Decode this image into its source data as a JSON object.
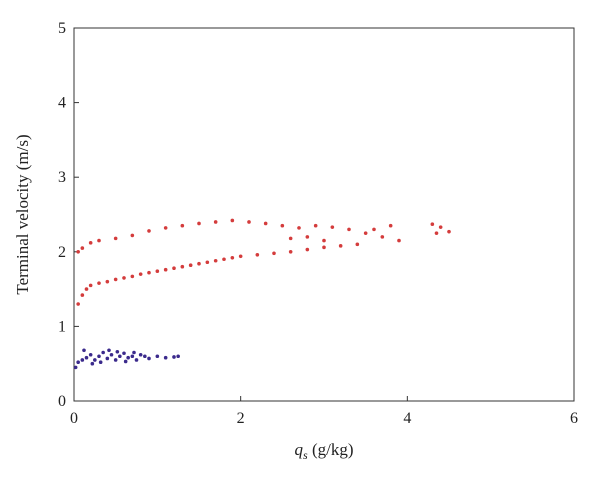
{
  "chart_data": {
    "type": "scatter",
    "title": "",
    "xlabel": "q",
    "xlabel_sub": "s",
    "xlabel_units": " (g/kg)",
    "ylabel": "Terminal velocity (m/s)",
    "xlim": [
      0,
      6
    ],
    "ylim": [
      0,
      5
    ],
    "xticks": [
      0,
      2,
      4,
      6
    ],
    "yticks": [
      0,
      1,
      2,
      3,
      4,
      5
    ],
    "grid": false,
    "legend": "none",
    "series": [
      {
        "color": "#d43c3c",
        "points": [
          [
            0.05,
            1.3
          ],
          [
            0.1,
            1.42
          ],
          [
            0.15,
            1.5
          ],
          [
            0.2,
            1.55
          ],
          [
            0.3,
            1.58
          ],
          [
            0.4,
            1.6
          ],
          [
            0.5,
            1.63
          ],
          [
            0.6,
            1.65
          ],
          [
            0.7,
            1.67
          ],
          [
            0.8,
            1.7
          ],
          [
            0.9,
            1.72
          ],
          [
            1.0,
            1.74
          ],
          [
            1.1,
            1.76
          ],
          [
            1.2,
            1.78
          ],
          [
            1.3,
            1.8
          ],
          [
            1.4,
            1.82
          ],
          [
            1.5,
            1.84
          ],
          [
            1.6,
            1.86
          ],
          [
            1.7,
            1.88
          ],
          [
            1.8,
            1.9
          ],
          [
            1.9,
            1.92
          ],
          [
            2.0,
            1.94
          ],
          [
            2.2,
            1.96
          ],
          [
            2.4,
            1.98
          ],
          [
            2.6,
            2.0
          ],
          [
            2.8,
            2.03
          ],
          [
            3.0,
            2.06
          ],
          [
            3.2,
            2.08
          ],
          [
            3.4,
            2.1
          ],
          [
            0.05,
            2.0
          ],
          [
            0.1,
            2.05
          ],
          [
            0.2,
            2.12
          ],
          [
            0.3,
            2.15
          ],
          [
            0.5,
            2.18
          ],
          [
            0.7,
            2.22
          ],
          [
            0.9,
            2.28
          ],
          [
            1.1,
            2.32
          ],
          [
            1.3,
            2.35
          ],
          [
            1.5,
            2.38
          ],
          [
            1.7,
            2.4
          ],
          [
            1.9,
            2.42
          ],
          [
            2.1,
            2.4
          ],
          [
            2.3,
            2.38
          ],
          [
            2.5,
            2.35
          ],
          [
            2.7,
            2.32
          ],
          [
            2.9,
            2.35
          ],
          [
            3.1,
            2.33
          ],
          [
            3.3,
            2.3
          ],
          [
            3.5,
            2.25
          ],
          [
            3.6,
            2.3
          ],
          [
            3.8,
            2.35
          ],
          [
            3.9,
            2.15
          ],
          [
            4.3,
            2.37
          ],
          [
            4.35,
            2.25
          ],
          [
            4.4,
            2.33
          ],
          [
            4.5,
            2.27
          ],
          [
            3.7,
            2.2
          ],
          [
            3.0,
            2.15
          ],
          [
            2.8,
            2.2
          ],
          [
            2.6,
            2.18
          ]
        ]
      },
      {
        "color": "#3b2a8c",
        "points": [
          [
            0.02,
            0.45
          ],
          [
            0.05,
            0.52
          ],
          [
            0.1,
            0.55
          ],
          [
            0.15,
            0.58
          ],
          [
            0.2,
            0.62
          ],
          [
            0.25,
            0.55
          ],
          [
            0.3,
            0.6
          ],
          [
            0.35,
            0.65
          ],
          [
            0.4,
            0.57
          ],
          [
            0.45,
            0.62
          ],
          [
            0.5,
            0.55
          ],
          [
            0.55,
            0.6
          ],
          [
            0.6,
            0.64
          ],
          [
            0.65,
            0.58
          ],
          [
            0.7,
            0.6
          ],
          [
            0.75,
            0.55
          ],
          [
            0.8,
            0.62
          ],
          [
            0.85,
            0.6
          ],
          [
            0.9,
            0.57
          ],
          [
            1.0,
            0.6
          ],
          [
            1.1,
            0.58
          ],
          [
            1.2,
            0.59
          ],
          [
            1.25,
            0.6
          ],
          [
            0.12,
            0.68
          ],
          [
            0.22,
            0.5
          ],
          [
            0.32,
            0.52
          ],
          [
            0.42,
            0.68
          ],
          [
            0.52,
            0.66
          ],
          [
            0.62,
            0.53
          ],
          [
            0.72,
            0.65
          ]
        ]
      }
    ]
  }
}
